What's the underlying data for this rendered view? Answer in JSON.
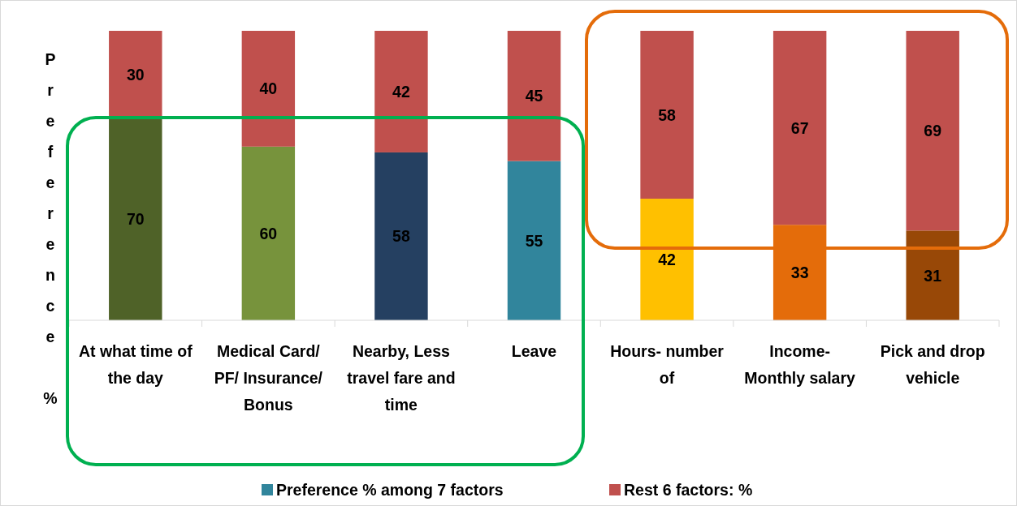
{
  "chart_data": {
    "type": "bar",
    "stacked": true,
    "ylabel": "Preference %",
    "categories": [
      "At what time of the day",
      "Medical Card/ PF/ Insurance/ Bonus",
      "Nearby, Less travel fare and time",
      "Leave",
      "Hours- number of",
      "Income- Monthly salary",
      "Pick and drop vehicle"
    ],
    "series": [
      {
        "name": "Preference % among 7 factors",
        "color": "#31859c",
        "colors": [
          "#4f6228",
          "#77933c",
          "#254061",
          "#31859c",
          "#ffc000",
          "#e46c0a",
          "#984807"
        ],
        "values": [
          70,
          60,
          58,
          55,
          42,
          33,
          31
        ]
      },
      {
        "name": "Rest 6 factors: %",
        "color": "#c0504d",
        "values": [
          30,
          40,
          42,
          45,
          58,
          67,
          69
        ]
      }
    ],
    "data_labels": true,
    "legend": "bottom"
  }
}
